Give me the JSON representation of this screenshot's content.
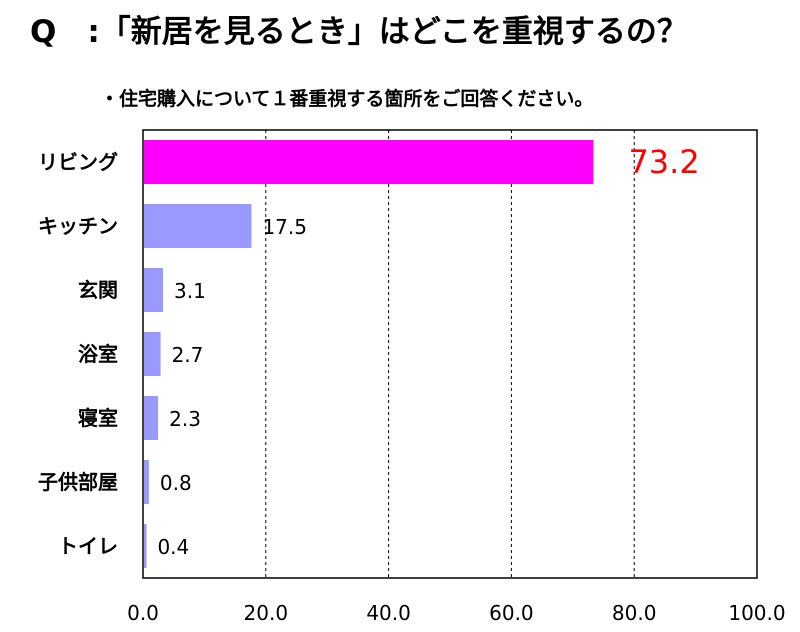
{
  "title": "Q　:「新居を見るとき」はどこを重視するの？",
  "subtitle": "・住宅購入について１番重視する箇所をご回答ください。",
  "chart_data": {
    "type": "bar",
    "orientation": "horizontal",
    "categories": [
      "リビング",
      "キッチン",
      "玄関",
      "浴室",
      "寝室",
      "子供部屋",
      "トイレ"
    ],
    "values": [
      73.2,
      17.5,
      3.1,
      2.7,
      2.3,
      0.8,
      0.4
    ],
    "value_labels": [
      "73.2",
      "17.5",
      "3.1",
      "2.7",
      "2.3",
      "0.8",
      "0.4"
    ],
    "x_ticks": [
      "0.0",
      "20.0",
      "40.0",
      "60.0",
      "80.0",
      "100.0"
    ],
    "xlim": [
      0,
      100
    ],
    "grid": "vertical dashed",
    "colors": {
      "highlight": "#ff00ff",
      "bar": "#9999ff",
      "highlight_label": "#ff0000",
      "grid": "#000000"
    }
  }
}
